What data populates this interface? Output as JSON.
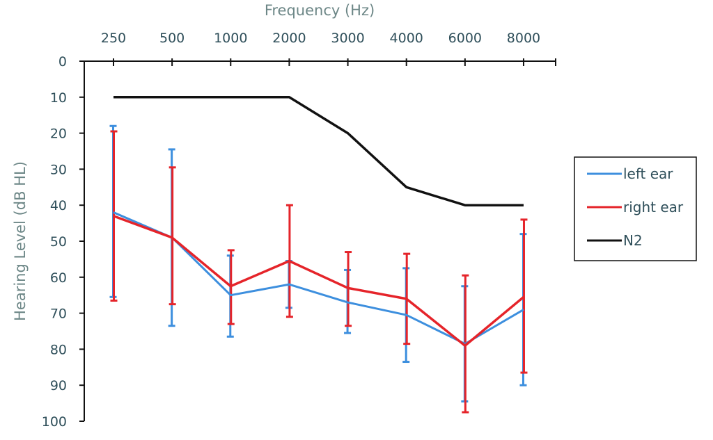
{
  "chart_data": {
    "type": "line",
    "title": "",
    "xlabel": "Frequency (Hz)",
    "ylabel": "Hearing Level (dB HL)",
    "categories": [
      "250",
      "500",
      "1000",
      "2000",
      "3000",
      "4000",
      "6000",
      "8000"
    ],
    "y_ticks": [
      "0",
      "10",
      "20",
      "30",
      "40",
      "50",
      "60",
      "70",
      "80",
      "90",
      "100"
    ],
    "ylim": [
      0,
      100
    ],
    "y_inverted": true,
    "x_axis_position": "top",
    "legend_position": "right",
    "grid": false,
    "series": [
      {
        "name": "left ear",
        "color": "#3d8fde",
        "values": [
          42,
          49,
          65,
          62,
          67,
          70.5,
          78.5,
          69
        ],
        "error_low": [
          18,
          24.5,
          54,
          55.5,
          58,
          57.5,
          62.5,
          48
        ],
        "error_high": [
          65.5,
          73.5,
          76.5,
          68.5,
          75.5,
          83.5,
          94.5,
          90
        ]
      },
      {
        "name": "right ear",
        "color": "#e5242a",
        "values": [
          43,
          49,
          62.5,
          55.5,
          63,
          66,
          79,
          65.5
        ],
        "error_low": [
          19.5,
          29.5,
          52.5,
          40,
          53,
          53.5,
          59.5,
          44
        ],
        "error_high": [
          66.5,
          67.5,
          73,
          71,
          73.5,
          78.5,
          97.5,
          86.5
        ]
      },
      {
        "name": "N2",
        "color": "#111111",
        "values": [
          10,
          10,
          10,
          10,
          20,
          35,
          40,
          40
        ]
      }
    ]
  }
}
